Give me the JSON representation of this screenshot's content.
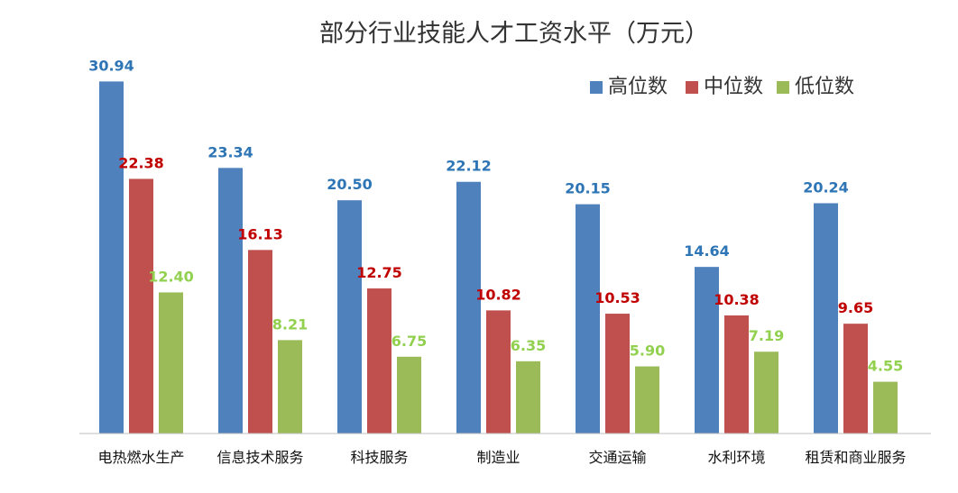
{
  "chart_data": {
    "type": "bar",
    "title": "部分行业技能人才工资水平（万元）",
    "categories": [
      "电热燃水生产",
      "信息技术服务",
      "科技服务",
      "制造业",
      "交通运输",
      "水利环境",
      "租赁和商业服务"
    ],
    "series": [
      {
        "name": "高位数",
        "color": "#4F81BD",
        "label_color": "#2E75B6",
        "values": [
          30.94,
          23.34,
          20.5,
          22.12,
          20.15,
          14.64,
          20.24
        ]
      },
      {
        "name": "中位数",
        "color": "#C0504D",
        "label_color": "#C00000",
        "values": [
          22.38,
          16.13,
          12.75,
          10.82,
          10.53,
          10.38,
          9.65
        ]
      },
      {
        "name": "低位数",
        "color": "#9BBB59",
        "label_color": "#92D050",
        "values": [
          12.4,
          8.21,
          6.75,
          6.35,
          5.9,
          7.19,
          4.55
        ]
      }
    ],
    "ylim": [
      0,
      32
    ],
    "legend_position": "top-right",
    "grid": false,
    "value_decimals": 2
  }
}
